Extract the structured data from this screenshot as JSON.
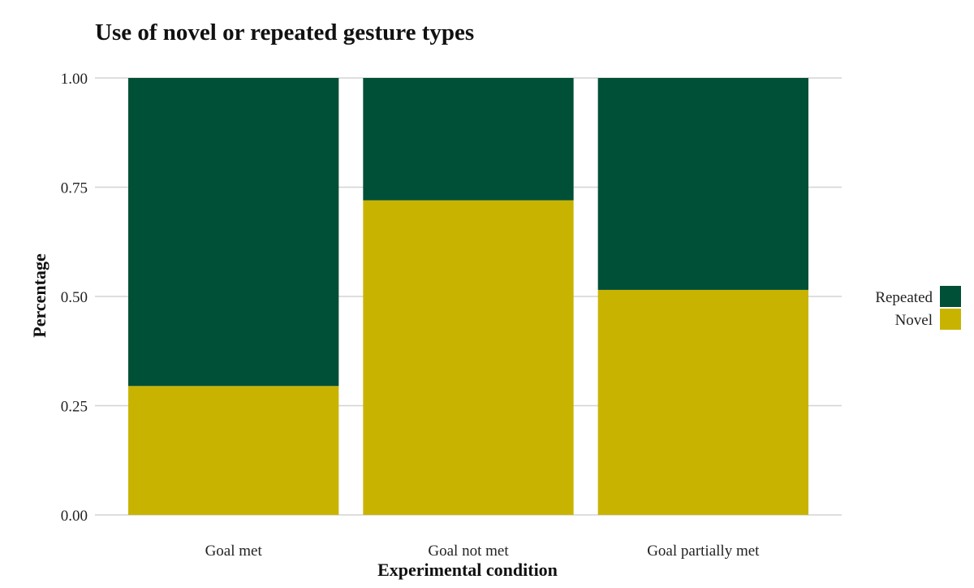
{
  "chart_data": {
    "type": "bar",
    "stacked": true,
    "title": "Use of novel or repeated gesture types",
    "xlabel": "Experimental condition",
    "ylabel": "Percentage",
    "categories": [
      "Goal met",
      "Goal not met",
      "Goal partially met"
    ],
    "series": [
      {
        "name": "Novel",
        "values": [
          0.295,
          0.72,
          0.515
        ],
        "color": "#c8b400"
      },
      {
        "name": "Repeated",
        "values": [
          0.705,
          0.28,
          0.485
        ],
        "color": "#004f37"
      }
    ],
    "ylim": [
      0,
      1
    ],
    "yticks": [
      "0.00",
      "0.25",
      "0.50",
      "0.75",
      "1.00"
    ],
    "ytick_values": [
      0,
      0.25,
      0.5,
      0.75,
      1
    ],
    "grid": true,
    "legend": {
      "position": "right",
      "entries": [
        "Repeated",
        "Novel"
      ]
    },
    "colors": {
      "gridline": "#d3d3d3",
      "background": "#ffffff"
    }
  }
}
